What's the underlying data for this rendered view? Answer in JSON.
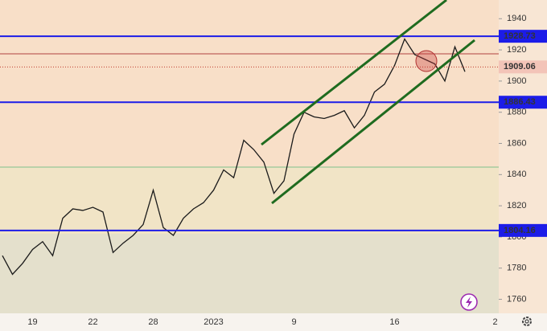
{
  "chart_data": {
    "type": "line",
    "categories": [
      null,
      null,
      null,
      "19",
      null,
      null,
      null,
      null,
      null,
      "22",
      null,
      null,
      null,
      null,
      null,
      "28",
      null,
      null,
      null,
      null,
      null,
      "2023",
      null,
      null,
      null,
      null,
      null,
      null,
      null,
      "9",
      null,
      null,
      null,
      null,
      null,
      null,
      null,
      null,
      null,
      "16",
      null,
      null,
      null,
      null,
      null,
      null,
      null,
      null,
      null,
      "2"
    ],
    "series": [
      {
        "name": null,
        "color": "#1b1b1b",
        "values": [
          1788,
          1776,
          1783,
          1792,
          1797,
          1788,
          1812,
          1818,
          1817,
          1819,
          1816,
          1790,
          1796,
          1801,
          1808,
          1830,
          1806,
          1801,
          1812,
          1818,
          1822,
          1830,
          1843,
          1838,
          1862,
          1856,
          1848,
          1828,
          1836,
          1866,
          1880,
          1877,
          1876,
          1878,
          1881,
          1870,
          1878,
          1893,
          1898,
          1910,
          1927,
          1917,
          1914,
          1911,
          1900,
          1922,
          1906,
          null,
          null,
          null
        ]
      }
    ],
    "ylim": [
      1751,
      1952
    ],
    "yticks": [
      1760,
      1780,
      1800,
      1820,
      1840,
      1860,
      1880,
      1900,
      1920,
      1940
    ],
    "levels": [
      1928.73,
      1886.43,
      1804.16
    ],
    "level_color": "#1c1ce8",
    "current_price": 1909.06,
    "current_color": "#c0392b"
  }
}
